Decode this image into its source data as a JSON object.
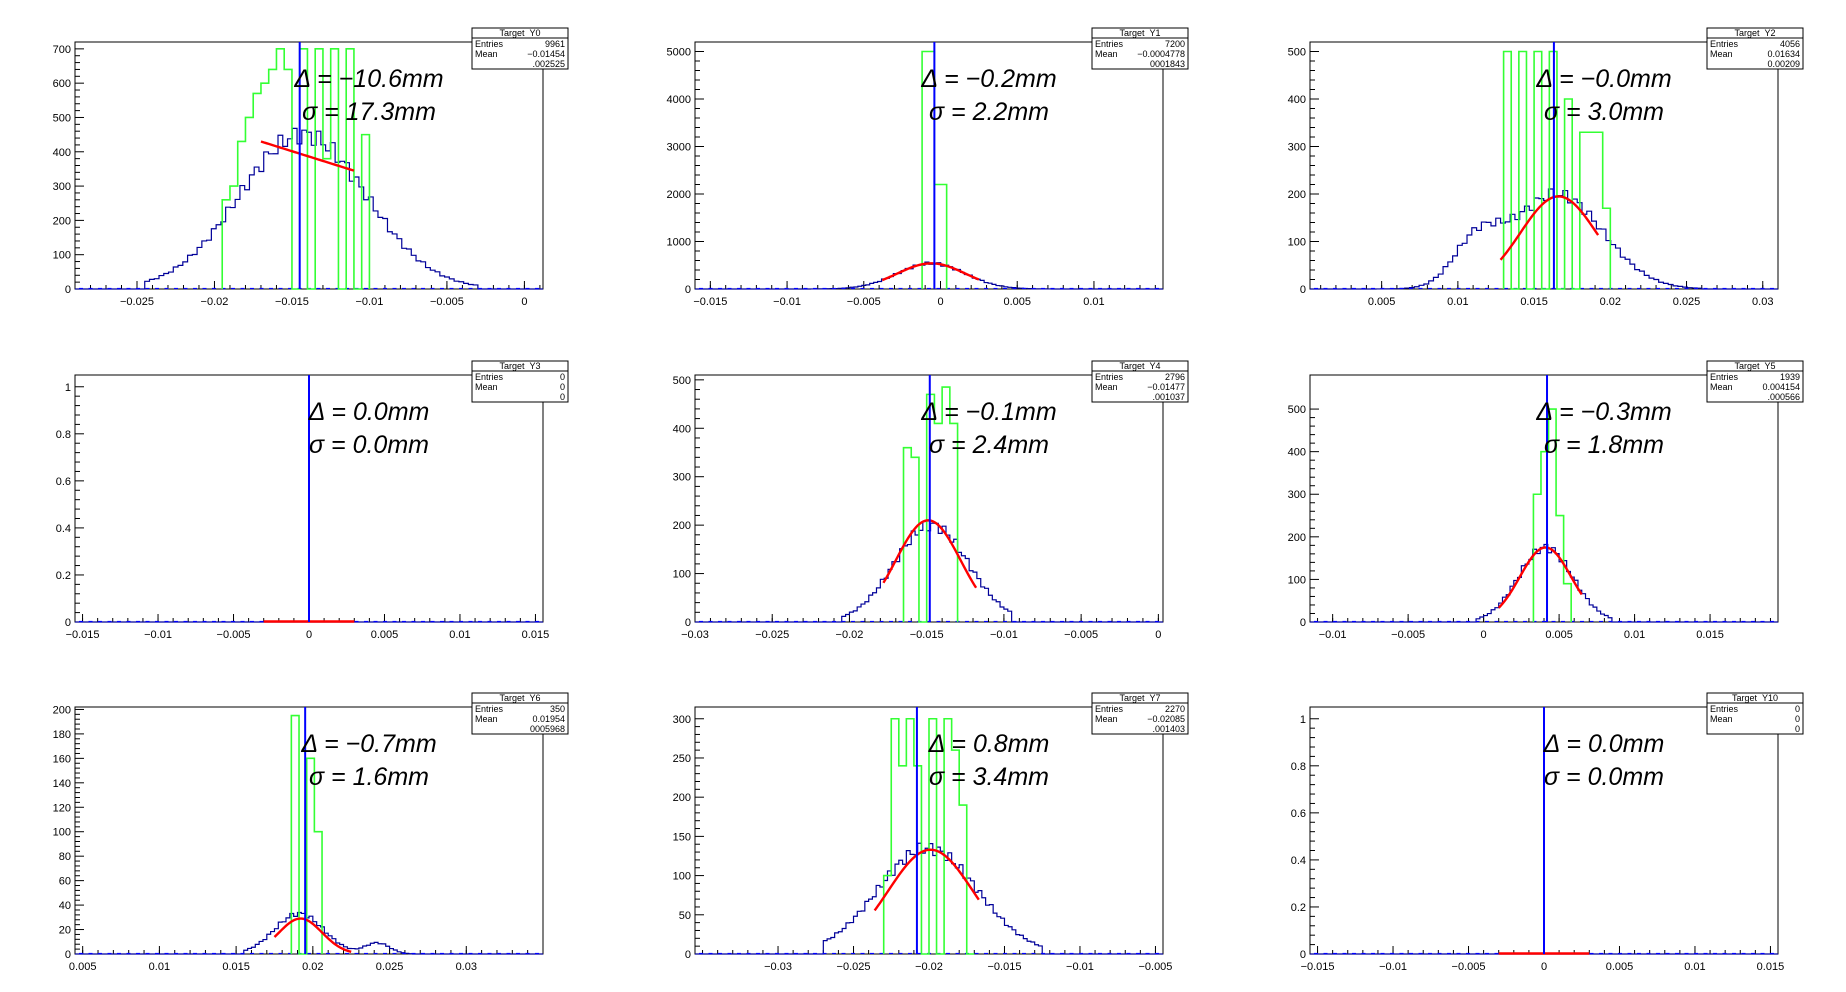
{
  "colors": {
    "frame": "#000000",
    "green_hist": "#33ff33",
    "navy_hist": "#000099",
    "mean_line": "#0000ff",
    "fit": "#ff0000"
  },
  "chart_data": [
    {
      "type": "histogram",
      "stats": {
        "title": "Target_Y0",
        "entries_label": "Entries",
        "entries": "9961",
        "mean_label": "Mean",
        "mean": "−0.01454",
        "std_dev": ".002525"
      },
      "annotation": {
        "delta": "Δ = −10.6mm",
        "sigma": "σ = 17.3mm"
      },
      "xlim": [
        -0.029,
        0.0012
      ],
      "ylim": [
        0,
        720
      ],
      "xticks": [
        -0.025,
        -0.02,
        -0.015,
        -0.01,
        -0.005,
        0
      ],
      "xtick_labels": [
        "−0.025",
        "−0.02",
        "−0.015",
        "−0.01",
        "−0.005",
        "0"
      ],
      "yticks": [
        0,
        100,
        200,
        300,
        400,
        500,
        600,
        700
      ],
      "ytick_labels": [
        "0",
        "100",
        "200",
        "300",
        "400",
        "500",
        "600",
        "700"
      ],
      "mean_line_x": -0.0145,
      "blue_hist": {
        "center": -0.0143,
        "sigma": 0.0041,
        "amplitude": 450,
        "min_x": -0.0245,
        "max_x": -0.003,
        "bins": 70
      },
      "green_hist": {
        "edges": [
          -0.0195,
          -0.019,
          -0.0185,
          -0.018,
          -0.0175,
          -0.017,
          -0.0165,
          -0.016,
          -0.0155,
          -0.015,
          -0.0145,
          -0.014,
          -0.0135,
          -0.013,
          -0.0125,
          -0.012,
          -0.0115,
          -0.011,
          -0.0105,
          -0.01
        ],
        "values": [
          260,
          300,
          430,
          500,
          570,
          600,
          640,
          700,
          640,
          0,
          700,
          0,
          700,
          380,
          700,
          0,
          700,
          0,
          450
        ]
      },
      "fit": {
        "type": "line",
        "x_start": -0.017,
        "x_end": -0.011,
        "y_start": 430,
        "y_end": 345
      }
    },
    {
      "type": "histogram",
      "stats": {
        "title": "Target_Y1",
        "entries_label": "Entries",
        "entries": "7200",
        "mean_label": "Mean",
        "mean": "−0.0004778",
        "std_dev": "0001843"
      },
      "annotation": {
        "delta": "Δ = −0.2mm",
        "sigma": "σ = 2.2mm"
      },
      "xlim": [
        -0.016,
        0.0145
      ],
      "ylim": [
        0,
        5200
      ],
      "xticks": [
        -0.015,
        -0.01,
        -0.005,
        0,
        0.005,
        0.01
      ],
      "xtick_labels": [
        "−0.015",
        "−0.01",
        "−0.005",
        "0",
        "0.005",
        "0.01"
      ],
      "yticks": [
        0,
        1000,
        2000,
        3000,
        4000,
        5000
      ],
      "ytick_labels": [
        "0",
        "1000",
        "2000",
        "3000",
        "4000",
        "5000"
      ],
      "mean_line_x": -0.0004,
      "blue_hist": {
        "center": -0.0006,
        "sigma": 0.0022,
        "amplitude": 540,
        "min_x": -0.0095,
        "max_x": 0.0085,
        "bins": 70
      },
      "green_hist": {
        "edges": [
          -0.0012,
          -0.0004,
          0.0004
        ],
        "values": [
          5000,
          2200
        ]
      },
      "fit": {
        "type": "gauss",
        "x_start": -0.0038,
        "x_end": 0.0025,
        "amplitude": 540,
        "center": -0.0006,
        "sigma": 0.0022
      }
    },
    {
      "type": "histogram",
      "stats": {
        "title": "Target_Y2",
        "entries_label": "Entries",
        "entries": "4056",
        "mean_label": "Mean",
        "mean": "0.01634",
        "std_dev": "0.00209"
      },
      "annotation": {
        "delta": "Δ = −0.0mm",
        "sigma": "σ = 3.0mm"
      },
      "xlim": [
        0.0003,
        0.031
      ],
      "ylim": [
        0,
        520
      ],
      "xticks": [
        0.005,
        0.01,
        0.015,
        0.02,
        0.025,
        0.03
      ],
      "xtick_labels": [
        "0.005",
        "0.01",
        "0.015",
        "0.02",
        "0.025",
        "0.03"
      ],
      "yticks": [
        0,
        100,
        200,
        300,
        400,
        500
      ],
      "ytick_labels": [
        "0",
        "100",
        "200",
        "300",
        "400",
        "500"
      ],
      "mean_line_x": 0.0163,
      "blue_hist": {
        "center": 0.0165,
        "sigma": 0.003,
        "amplitude": 200,
        "min_x": 0.004,
        "max_x": 0.026,
        "bins": 70,
        "secondary": {
          "center": 0.0112,
          "sigma": 0.0015,
          "amplitude": 85
        }
      },
      "green_hist": {
        "edges": [
          0.013,
          0.0135,
          0.014,
          0.0145,
          0.015,
          0.0155,
          0.016,
          0.0165,
          0.017,
          0.0175,
          0.018,
          0.0185,
          0.019,
          0.0195,
          0.02
        ],
        "values": [
          500,
          0,
          500,
          0,
          500,
          0,
          500,
          0,
          400,
          0,
          330,
          330,
          330,
          170
        ]
      },
      "fit": {
        "type": "gauss",
        "x_start": 0.0128,
        "x_end": 0.0192,
        "amplitude": 195,
        "center": 0.0166,
        "sigma": 0.0025
      }
    },
    {
      "type": "histogram",
      "stats": {
        "title": "Target_Y3",
        "entries_label": "Entries",
        "entries": "0",
        "mean_label": "Mean",
        "mean": "0",
        "std_dev": "0"
      },
      "annotation": {
        "delta": "Δ = 0.0mm",
        "sigma": "σ = 0.0mm"
      },
      "xlim": [
        -0.0155,
        0.0155
      ],
      "ylim": [
        0,
        1.05
      ],
      "xticks": [
        -0.015,
        -0.01,
        -0.005,
        0,
        0.005,
        0.01,
        0.015
      ],
      "xtick_labels": [
        "−0.015",
        "−0.01",
        "−0.005",
        "0",
        "0.005",
        "0.01",
        "0.015"
      ],
      "yticks": [
        0,
        0.2,
        0.4,
        0.6,
        0.8,
        1
      ],
      "ytick_labels": [
        "0",
        "0.2",
        "0.4",
        "0.6",
        "0.8",
        "1"
      ],
      "mean_line_x": 0,
      "blue_hist": null,
      "green_hist": null,
      "fit": {
        "type": "line",
        "x_start": -0.003,
        "x_end": 0.003,
        "y_start": 0,
        "y_end": 0
      }
    },
    {
      "type": "histogram",
      "stats": {
        "title": "Target_Y4",
        "entries_label": "Entries",
        "entries": "2796",
        "mean_label": "Mean",
        "mean": "−0.01477",
        "std_dev": ".001037"
      },
      "annotation": {
        "delta": "Δ = −0.1mm",
        "sigma": "σ = 2.4mm"
      },
      "xlim": [
        -0.03,
        0.0003
      ],
      "ylim": [
        0,
        510
      ],
      "xticks": [
        -0.03,
        -0.025,
        -0.02,
        -0.015,
        -0.01,
        -0.005,
        0
      ],
      "xtick_labels": [
        "−0.03",
        "−0.025",
        "−0.02",
        "−0.015",
        "−0.01",
        "−0.005",
        "0"
      ],
      "yticks": [
        0,
        100,
        200,
        300,
        400,
        500
      ],
      "ytick_labels": [
        "0",
        "100",
        "200",
        "300",
        "400",
        "500"
      ],
      "mean_line_x": -0.0148,
      "blue_hist": {
        "center": -0.0147,
        "sigma": 0.0024,
        "amplitude": 200,
        "min_x": -0.0205,
        "max_x": -0.0095,
        "bins": 44
      },
      "green_hist": {
        "edges": [
          -0.0165,
          -0.016,
          -0.0155,
          -0.015,
          -0.0145,
          -0.014,
          -0.0135,
          -0.013
        ],
        "values": [
          360,
          340,
          0,
          470,
          410,
          485,
          410
        ]
      },
      "fit": {
        "type": "gauss",
        "x_start": -0.0178,
        "x_end": -0.0118,
        "amplitude": 210,
        "center": -0.0149,
        "sigma": 0.0021
      }
    },
    {
      "type": "histogram",
      "stats": {
        "title": "Target_Y5",
        "entries_label": "Entries",
        "entries": "1939",
        "mean_label": "Mean",
        "mean": "0.004154",
        "std_dev": ".000566"
      },
      "annotation": {
        "delta": "Δ = −0.3mm",
        "sigma": "σ = 1.8mm"
      },
      "xlim": [
        -0.0115,
        0.0195
      ],
      "ylim": [
        0,
        580
      ],
      "xticks": [
        -0.01,
        -0.005,
        0,
        0.005,
        0.01,
        0.015
      ],
      "xtick_labels": [
        "−0.01",
        "−0.005",
        "0",
        "0.005",
        "0.01",
        "0.015"
      ],
      "yticks": [
        0,
        100,
        200,
        300,
        400,
        500
      ],
      "ytick_labels": [
        "0",
        "100",
        "200",
        "300",
        "400",
        "500"
      ],
      "mean_line_x": 0.0042,
      "blue_hist": {
        "center": 0.0041,
        "sigma": 0.0018,
        "amplitude": 175,
        "min_x": -0.0005,
        "max_x": 0.0085,
        "bins": 36
      },
      "green_hist": {
        "edges": [
          0.0033,
          0.0038,
          0.0043,
          0.0048,
          0.0053,
          0.0058
        ],
        "values": [
          300,
          400,
          500,
          250,
          90
        ]
      },
      "fit": {
        "type": "gauss",
        "x_start": 0.001,
        "x_end": 0.0065,
        "amplitude": 175,
        "center": 0.0041,
        "sigma": 0.0017
      }
    },
    {
      "type": "histogram",
      "stats": {
        "title": "Target_Y6",
        "entries_label": "Entries",
        "entries": "350",
        "mean_label": "Mean",
        "mean": "0.01954",
        "std_dev": "0005968"
      },
      "annotation": {
        "delta": "Δ = −0.7mm",
        "sigma": "σ = 1.6mm"
      },
      "xlim": [
        0.0045,
        0.035
      ],
      "ylim": [
        0,
        202
      ],
      "xticks": [
        0.005,
        0.01,
        0.015,
        0.02,
        0.025,
        0.03
      ],
      "xtick_labels": [
        "0.005",
        "0.01",
        "0.015",
        "0.02",
        "0.025",
        "0.03"
      ],
      "yticks": [
        0,
        20,
        40,
        60,
        80,
        100,
        120,
        140,
        160,
        180,
        200
      ],
      "ytick_labels": [
        "0",
        "20",
        "40",
        "60",
        "80",
        "100",
        "120",
        "140",
        "160",
        "180",
        "200"
      ],
      "mean_line_x": 0.0195,
      "blue_hist": {
        "center": 0.0191,
        "sigma": 0.0016,
        "amplitude": 33,
        "min_x": 0.0155,
        "max_x": 0.0265,
        "bins": 44,
        "secondary": {
          "center": 0.0242,
          "sigma": 0.0008,
          "amplitude": 9
        }
      },
      "green_hist": {
        "edges": [
          0.0186,
          0.0191,
          0.0196,
          0.0201,
          0.0206
        ],
        "values": [
          195,
          0,
          160,
          100
        ]
      },
      "fit": {
        "type": "gauss",
        "x_start": 0.0175,
        "x_end": 0.0225,
        "amplitude": 29,
        "center": 0.0192,
        "sigma": 0.0014
      }
    },
    {
      "type": "histogram",
      "stats": {
        "title": "Target_Y7",
        "entries_label": "Entries",
        "entries": "2270",
        "mean_label": "Mean",
        "mean": "−0.02085",
        "std_dev": ".001403"
      },
      "annotation": {
        "delta": "Δ = 0.8mm",
        "sigma": "σ = 3.4mm"
      },
      "xlim": [
        -0.0355,
        -0.0045
      ],
      "ylim": [
        0,
        315
      ],
      "xticks": [
        -0.03,
        -0.025,
        -0.02,
        -0.015,
        -0.01,
        -0.005
      ],
      "xtick_labels": [
        "−0.03",
        "−0.025",
        "−0.02",
        "−0.015",
        "−0.01",
        "−0.005"
      ],
      "yticks": [
        0,
        50,
        100,
        150,
        200,
        250,
        300
      ],
      "ytick_labels": [
        "0",
        "50",
        "100",
        "150",
        "200",
        "250",
        "300"
      ],
      "mean_line_x": -0.0208,
      "blue_hist": {
        "center": -0.0201,
        "sigma": 0.0033,
        "amplitude": 135,
        "min_x": -0.027,
        "max_x": -0.0125,
        "bins": 58
      },
      "green_hist": {
        "edges": [
          -0.023,
          -0.0225,
          -0.022,
          -0.0215,
          -0.021,
          -0.0205,
          -0.02,
          -0.0195,
          -0.019,
          -0.0185,
          -0.018,
          -0.0175,
          -0.017
        ],
        "values": [
          100,
          300,
          240,
          300,
          240,
          0,
          300,
          0,
          300,
          260,
          190,
          0
        ]
      },
      "fit": {
        "type": "gauss",
        "x_start": -0.0236,
        "x_end": -0.0167,
        "amplitude": 133,
        "center": -0.0199,
        "sigma": 0.0028
      }
    },
    {
      "type": "histogram",
      "stats": {
        "title": "Target_Y10",
        "entries_label": "Entries",
        "entries": "0",
        "mean_label": "Mean",
        "mean": "0",
        "std_dev": "0"
      },
      "annotation": {
        "delta": "Δ = 0.0mm",
        "sigma": "σ = 0.0mm"
      },
      "xlim": [
        -0.0155,
        0.0155
      ],
      "ylim": [
        0,
        1.05
      ],
      "xticks": [
        -0.015,
        -0.01,
        -0.005,
        0,
        0.005,
        0.01,
        0.015
      ],
      "xtick_labels": [
        "−0.015",
        "−0.01",
        "−0.005",
        "0",
        "0.005",
        "0.01",
        "0.015"
      ],
      "yticks": [
        0,
        0.2,
        0.4,
        0.6,
        0.8,
        1
      ],
      "ytick_labels": [
        "0",
        "0.2",
        "0.4",
        "0.6",
        "0.8",
        "1"
      ],
      "mean_line_x": 0,
      "blue_hist": null,
      "green_hist": null,
      "fit": {
        "type": "line",
        "x_start": -0.003,
        "x_end": 0.003,
        "y_start": 0,
        "y_end": 0
      }
    }
  ]
}
